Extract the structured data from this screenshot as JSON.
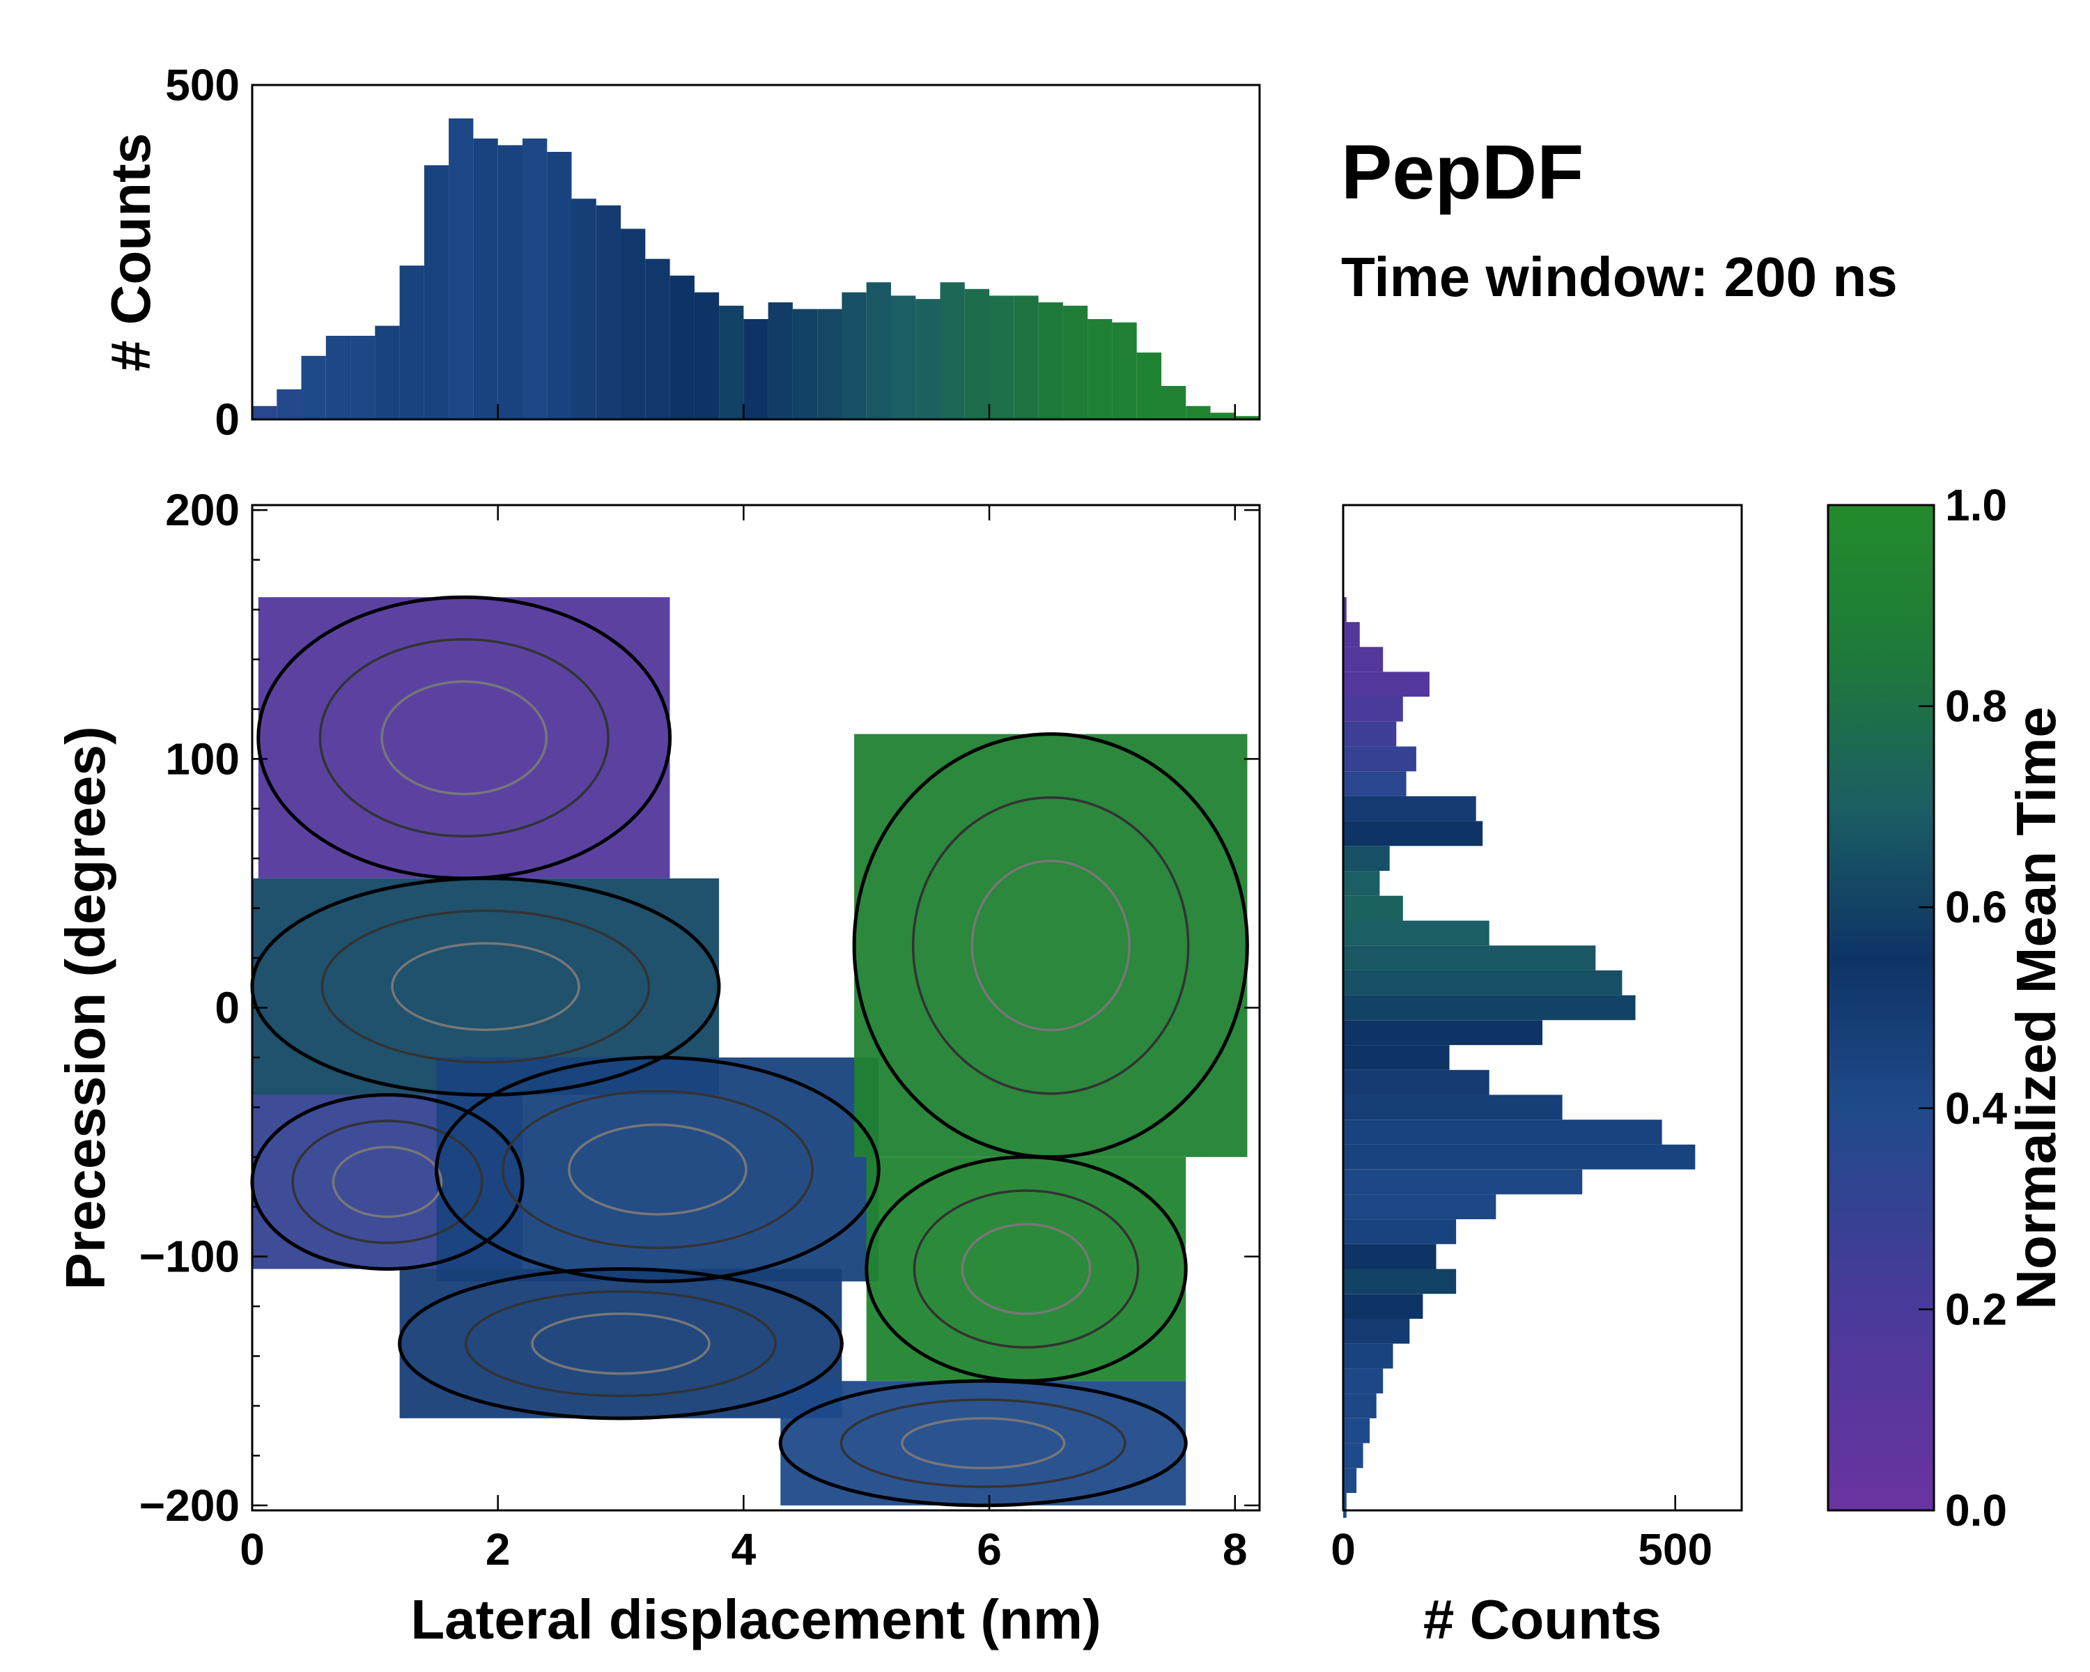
{
  "title": "PepDF",
  "subtitle": "Time window: 200 ns",
  "colors": {
    "purple": "#6a33a0",
    "blue": "#1f3f7f",
    "navy": "#0e3466",
    "teal": "#1b5e63",
    "green": "#238b2b",
    "bright_green": "#2a9a2a"
  },
  "chart_data": [
    {
      "id": "main",
      "type": "heatmap",
      "xlabel": "Lateral displacement (nm)",
      "ylabel": "Precession (degrees)",
      "xlim": [
        0,
        8.2
      ],
      "ylim": [
        -202,
        202
      ],
      "xticks": [
        "0",
        "2",
        "4",
        "6",
        "8"
      ],
      "yticks": [
        "200",
        "100",
        "0",
        "−100",
        "−200"
      ],
      "xtick_values": [
        0,
        2,
        4,
        6,
        8
      ],
      "ytick_values": [
        200,
        100,
        0,
        -100,
        -200
      ],
      "regions": [
        {
          "name": "upper-left-purple",
          "x_range": [
            0.05,
            3.4
          ],
          "y_range": [
            52,
            165
          ],
          "mean_time": 0.15
        },
        {
          "name": "center-left-teal",
          "x_range": [
            0,
            3.8
          ],
          "y_range": [
            -35,
            52
          ],
          "mean_time": 0.62
        },
        {
          "name": "lower-left-purple-blue",
          "x_range": [
            0,
            2.2
          ],
          "y_range": [
            -105,
            -35
          ],
          "mean_time": 0.3
        },
        {
          "name": "center-blue",
          "x_range": [
            1.5,
            5.1
          ],
          "y_range": [
            -110,
            -20
          ],
          "mean_time": 0.45
        },
        {
          "name": "lower-blue",
          "x_range": [
            1.2,
            4.8
          ],
          "y_range": [
            -165,
            -105
          ],
          "mean_time": 0.48
        },
        {
          "name": "upper-right-green",
          "x_range": [
            4.9,
            8.1
          ],
          "y_range": [
            -60,
            110
          ],
          "mean_time": 0.92
        },
        {
          "name": "lower-right-green",
          "x_range": [
            5.0,
            7.6
          ],
          "y_range": [
            -150,
            -60
          ],
          "mean_time": 0.95
        },
        {
          "name": "bottom-right-blue",
          "x_range": [
            4.3,
            7.6
          ],
          "y_range": [
            -200,
            -150
          ],
          "mean_time": 0.4
        }
      ]
    },
    {
      "id": "top-histogram",
      "type": "bar",
      "ylabel": "# Counts",
      "xlim": [
        0,
        8.2
      ],
      "ylim": [
        0,
        500
      ],
      "yticks": [
        "500",
        "0"
      ],
      "ytick_values": [
        500,
        0
      ],
      "x": [
        0.0,
        0.2,
        0.4,
        0.6,
        0.8,
        1.0,
        1.2,
        1.4,
        1.6,
        1.8,
        2.0,
        2.2,
        2.4,
        2.6,
        2.8,
        3.0,
        3.2,
        3.4,
        3.6,
        3.8,
        4.0,
        4.2,
        4.4,
        4.6,
        4.8,
        5.0,
        5.2,
        5.4,
        5.6,
        5.8,
        6.0,
        6.2,
        6.4,
        6.6,
        6.8,
        7.0,
        7.2,
        7.4,
        7.6,
        7.8,
        8.0,
        8.2
      ],
      "values": [
        20,
        45,
        95,
        125,
        125,
        140,
        230,
        380,
        450,
        420,
        410,
        420,
        400,
        330,
        320,
        285,
        240,
        215,
        190,
        170,
        150,
        175,
        165,
        165,
        190,
        205,
        185,
        180,
        205,
        195,
        185,
        185,
        175,
        170,
        150,
        145,
        100,
        50,
        20,
        10,
        5,
        0
      ],
      "mean_time": [
        0.35,
        0.38,
        0.4,
        0.42,
        0.42,
        0.45,
        0.45,
        0.45,
        0.42,
        0.45,
        0.45,
        0.42,
        0.45,
        0.48,
        0.5,
        0.52,
        0.52,
        0.55,
        0.55,
        0.6,
        0.55,
        0.58,
        0.6,
        0.62,
        0.65,
        0.68,
        0.7,
        0.72,
        0.75,
        0.78,
        0.8,
        0.82,
        0.85,
        0.88,
        0.9,
        0.9,
        0.92,
        0.92,
        0.95,
        0.95,
        0.95,
        0.95
      ]
    },
    {
      "id": "right-histogram",
      "type": "bar",
      "orientation": "horizontal",
      "xlabel": "# Counts",
      "xlim": [
        0,
        600
      ],
      "ylim": [
        -202,
        202
      ],
      "xticks": [
        "0",
        "500"
      ],
      "xtick_values": [
        0,
        500
      ],
      "y": [
        160,
        150,
        140,
        130,
        120,
        110,
        100,
        90,
        80,
        70,
        60,
        50,
        40,
        30,
        20,
        10,
        0,
        -10,
        -20,
        -30,
        -40,
        -50,
        -60,
        -70,
        -80,
        -90,
        -100,
        -110,
        -120,
        -130,
        -140,
        -150,
        -160,
        -170,
        -180,
        -190,
        -200
      ],
      "values": [
        5,
        25,
        60,
        130,
        90,
        80,
        110,
        95,
        200,
        210,
        70,
        55,
        90,
        220,
        380,
        420,
        440,
        300,
        160,
        220,
        330,
        480,
        530,
        360,
        230,
        170,
        140,
        170,
        120,
        100,
        75,
        60,
        50,
        40,
        30,
        20,
        5
      ],
      "mean_time": [
        0.15,
        0.15,
        0.15,
        0.15,
        0.2,
        0.25,
        0.3,
        0.35,
        0.5,
        0.55,
        0.65,
        0.7,
        0.72,
        0.7,
        0.68,
        0.65,
        0.6,
        0.55,
        0.55,
        0.5,
        0.48,
        0.45,
        0.45,
        0.42,
        0.42,
        0.45,
        0.55,
        0.6,
        0.55,
        0.5,
        0.45,
        0.42,
        0.42,
        0.4,
        0.4,
        0.4,
        0.4
      ]
    },
    {
      "id": "colorbar",
      "type": "colorbar",
      "label": "Normalized Mean Time",
      "range": [
        0.0,
        1.0
      ],
      "ticks": [
        "1.0",
        "0.8",
        "0.6",
        "0.4",
        "0.2",
        "0.0"
      ],
      "tick_values": [
        1.0,
        0.8,
        0.6,
        0.4,
        0.2,
        0.0
      ]
    }
  ]
}
